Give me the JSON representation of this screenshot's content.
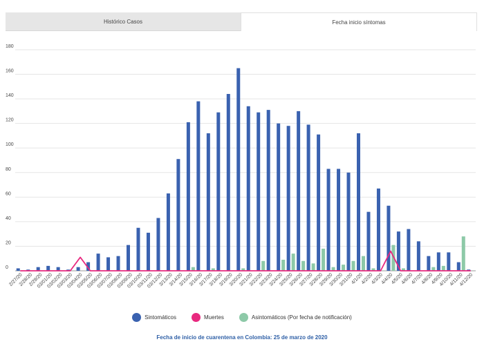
{
  "tabs": [
    {
      "label": "Histórico Casos",
      "active": false
    },
    {
      "label": "Fecha inicio síntomas",
      "active": true
    }
  ],
  "note": "Fecha de inicio de cuarentena en Colombia: 25 de marzo de 2020",
  "colors": {
    "sintomaticos": "#3a62b0",
    "muertes": "#e8297f",
    "asintomaticos": "#8dc9a8",
    "grid": "#e5e5e5",
    "axis": "#555555"
  },
  "chart_data": {
    "type": "bar",
    "ylim": [
      0,
      180
    ],
    "yticks": [
      0,
      20,
      40,
      60,
      80,
      100,
      120,
      140,
      160,
      180
    ],
    "legend_position": "bottom",
    "categories": [
      "2/27/20",
      "2/28/20",
      "2/29/20",
      "03/01/20",
      "03/02/20",
      "03/03/20",
      "03/04/20",
      "03/05/20",
      "03/06/20",
      "03/07/20",
      "03/08/20",
      "03/09/20",
      "03/10/20",
      "03/11/20",
      "03/12/20",
      "3/13/20",
      "3/14/20",
      "3/15/20",
      "3/16/20",
      "3/17/20",
      "3/18/20",
      "3/19/20",
      "3/20/20",
      "3/21/20",
      "3/22/20",
      "3/23/20",
      "3/24/20",
      "3/25/20",
      "3/26/20",
      "3/27/20",
      "3/28/20",
      "3/29/20",
      "3/30/20",
      "3/31/20",
      "4/1/20",
      "4/2/20",
      "4/3/20",
      "4/4/20",
      "4/5/20",
      "4/6/20",
      "4/7/20",
      "4/8/20",
      "4/9/20",
      "4/10/20",
      "4/11/20",
      "4/12/20"
    ],
    "series": [
      {
        "name": "Sintomáticos",
        "type": "bar",
        "values": [
          2,
          1,
          3,
          4,
          3,
          1,
          3,
          7,
          14,
          11,
          12,
          21,
          35,
          31,
          43,
          63,
          91,
          121,
          138,
          112,
          129,
          144,
          165,
          134,
          129,
          131,
          120,
          118,
          130,
          119,
          111,
          83,
          83,
          80,
          112,
          48,
          67,
          53,
          32,
          34,
          24,
          12,
          15,
          15,
          7,
          1
        ]
      },
      {
        "name": "Muertes",
        "type": "line",
        "values": [
          0,
          0,
          0,
          0,
          0,
          0,
          11,
          0,
          0,
          0,
          0,
          0,
          0,
          0,
          0,
          0,
          0,
          0,
          0,
          0,
          0,
          0,
          0,
          0,
          0,
          0,
          0,
          0,
          0,
          0,
          0,
          0,
          0,
          0,
          0,
          0,
          0,
          16,
          0,
          0,
          0,
          0,
          0,
          0,
          0,
          0
        ]
      },
      {
        "name": "Asintomáticos (Por fecha de notificación)",
        "type": "bar",
        "values": [
          0,
          0,
          0,
          0,
          0,
          0,
          0,
          0,
          0,
          0,
          0,
          0,
          0,
          0,
          0,
          0,
          0,
          3,
          0,
          2,
          0,
          0,
          2,
          0,
          8,
          0,
          9,
          14,
          8,
          6,
          18,
          3,
          5,
          8,
          12,
          2,
          0,
          21,
          2,
          0,
          0,
          3,
          4,
          0,
          28,
          0
        ]
      }
    ]
  }
}
